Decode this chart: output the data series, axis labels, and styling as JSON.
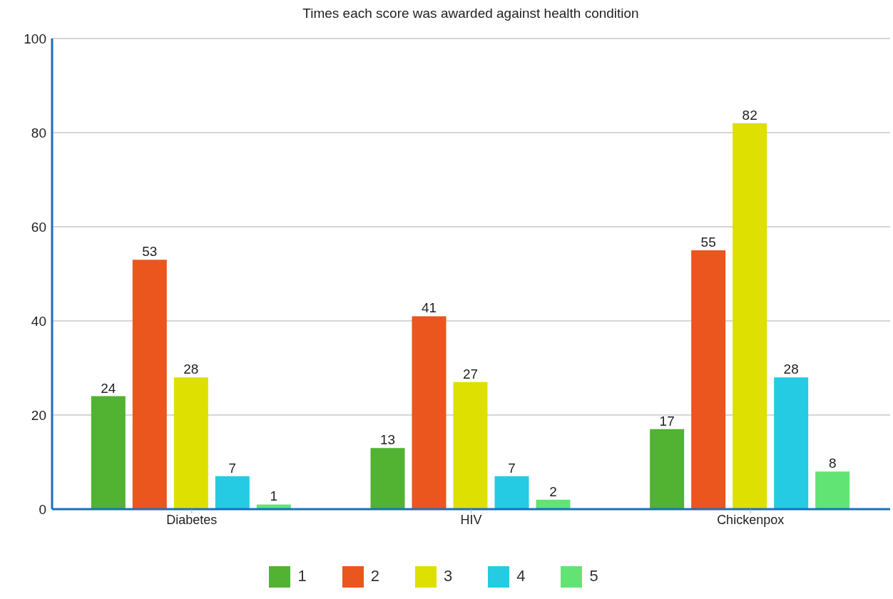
{
  "chart_data": {
    "type": "bar",
    "title": "Times each score was awarded against health condition",
    "categories": [
      "Diabetes",
      "HIV",
      "Chickenpox"
    ],
    "series": [
      {
        "name": "1",
        "color": "#52b232",
        "values": [
          24,
          13,
          17
        ]
      },
      {
        "name": "2",
        "color": "#ea561e",
        "values": [
          53,
          41,
          55
        ]
      },
      {
        "name": "3",
        "color": "#dde000",
        "values": [
          28,
          27,
          82
        ]
      },
      {
        "name": "4",
        "color": "#25cbe2",
        "values": [
          7,
          7,
          28
        ]
      },
      {
        "name": "5",
        "color": "#62e474",
        "values": [
          1,
          2,
          8
        ]
      }
    ],
    "ylim": [
      0,
      100
    ],
    "yticks": [
      0,
      20,
      40,
      60,
      80,
      100
    ],
    "grid": "y",
    "legend": "bottom",
    "data_labels": true
  }
}
